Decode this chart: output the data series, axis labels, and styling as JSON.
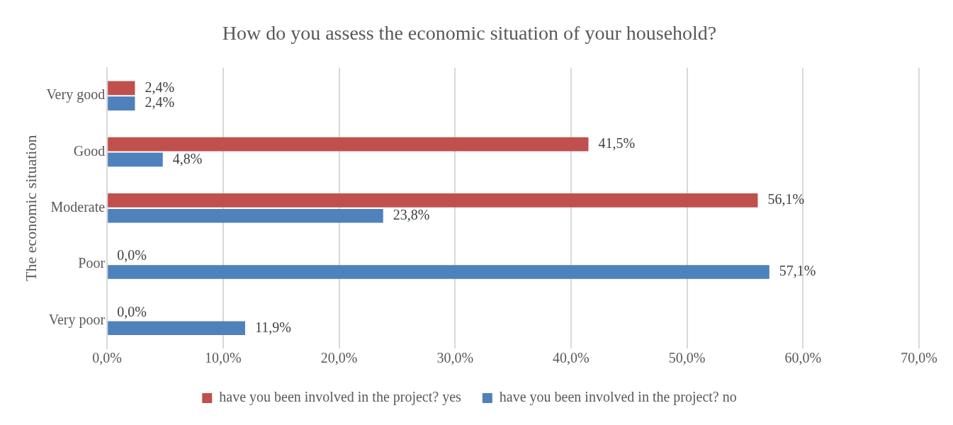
{
  "chart_data": {
    "type": "bar",
    "orientation": "horizontal",
    "title": "How do you assess the economic situation of your household?",
    "ylabel": "The economic situation",
    "categories": [
      "Very good",
      "Good",
      "Moderate",
      "Poor",
      "Very poor"
    ],
    "series": [
      {
        "name": "have you been involved in the project? yes",
        "color": "#c0504d",
        "values": [
          2.4,
          41.5,
          56.1,
          0,
          0
        ],
        "value_labels": [
          "2,4%",
          "41,5%",
          "56,1%",
          "0,0%",
          "0,0%"
        ]
      },
      {
        "name": "have you been involved in the project? no",
        "color": "#4f81bd",
        "values": [
          2.4,
          4.8,
          23.8,
          57.1,
          11.9
        ],
        "value_labels": [
          "2,4%",
          "4,8%",
          "23,8%",
          "57,1%",
          "11,9%"
        ]
      }
    ],
    "xlim": [
      0,
      70
    ],
    "xticks": [
      {
        "value": 0,
        "label": "0,0%"
      },
      {
        "value": 10,
        "label": "10,0%"
      },
      {
        "value": 20,
        "label": "20,0%"
      },
      {
        "value": 30,
        "label": "30,0%"
      },
      {
        "value": 40,
        "label": "40,0%"
      },
      {
        "value": 50,
        "label": "50,0%"
      },
      {
        "value": 60,
        "label": "60,0%"
      },
      {
        "value": 70,
        "label": "70,0%"
      }
    ],
    "grid": "x",
    "legend": "bottom"
  }
}
